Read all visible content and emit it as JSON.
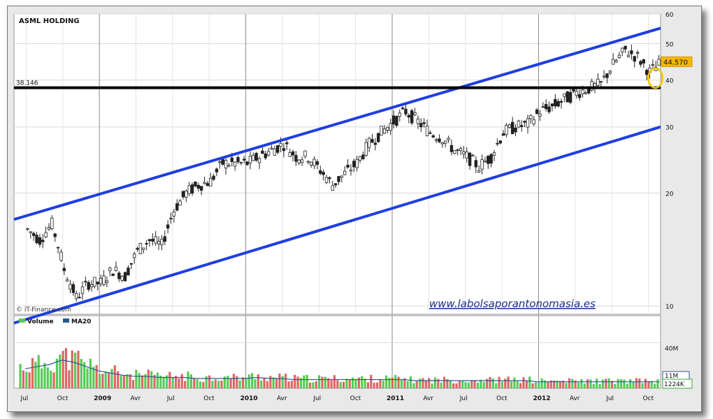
{
  "chart_data": [
    {
      "type": "candlestick",
      "title": "ASML HOLDING",
      "y_scale": "log",
      "ylim": [
        9.5,
        60
      ],
      "y_ticks": [
        10,
        20,
        30,
        40,
        50,
        60
      ],
      "x_ticks": [
        "Jul",
        "Oct",
        "2009",
        "Avr",
        "Jul",
        "Oct",
        "2010",
        "Avr",
        "Jul",
        "Oct",
        "2011",
        "Avr",
        "Jul",
        "Oct",
        "2012",
        "Avr",
        "Jul",
        "Oct"
      ],
      "last_price": "44.570",
      "horizontal_line": {
        "label": "38.146",
        "value": 38.146
      },
      "channel": {
        "upper": [
          {
            "date": "2008-06",
            "value": 17.0
          },
          {
            "date": "2012-11",
            "value": 55.0
          }
        ],
        "lower": [
          {
            "date": "2008-06",
            "value": 9.0
          },
          {
            "date": "2012-11",
            "value": 30.0
          }
        ]
      },
      "series": [
        {
          "name": "ASML HOLDING",
          "points": [
            {
              "date": "2008-07",
              "value": 16.0
            },
            {
              "date": "2008-08",
              "value": 15.0
            },
            {
              "date": "2008-09",
              "value": 16.5
            },
            {
              "date": "2008-10",
              "value": 12.5
            },
            {
              "date": "2008-11",
              "value": 10.5
            },
            {
              "date": "2008-12",
              "value": 11.5
            },
            {
              "date": "2009-01",
              "value": 11.5
            },
            {
              "date": "2009-02",
              "value": 12.5
            },
            {
              "date": "2009-03",
              "value": 12.0
            },
            {
              "date": "2009-04",
              "value": 14.0
            },
            {
              "date": "2009-05",
              "value": 15.0
            },
            {
              "date": "2009-06",
              "value": 14.5
            },
            {
              "date": "2009-07",
              "value": 18.0
            },
            {
              "date": "2009-08",
              "value": 20.0
            },
            {
              "date": "2009-09",
              "value": 21.0
            },
            {
              "date": "2009-10",
              "value": 21.5
            },
            {
              "date": "2009-11",
              "value": 24.0
            },
            {
              "date": "2009-12",
              "value": 24.0
            },
            {
              "date": "2010-01",
              "value": 24.0
            },
            {
              "date": "2010-02",
              "value": 25.0
            },
            {
              "date": "2010-03",
              "value": 26.0
            },
            {
              "date": "2010-04",
              "value": 27.0
            },
            {
              "date": "2010-05",
              "value": 25.0
            },
            {
              "date": "2010-06",
              "value": 25.0
            },
            {
              "date": "2010-07",
              "value": 23.0
            },
            {
              "date": "2010-08",
              "value": 21.0
            },
            {
              "date": "2010-09",
              "value": 22.5
            },
            {
              "date": "2010-10",
              "value": 24.0
            },
            {
              "date": "2010-11",
              "value": 27.0
            },
            {
              "date": "2010-12",
              "value": 29.0
            },
            {
              "date": "2011-01",
              "value": 31.0
            },
            {
              "date": "2011-02",
              "value": 33.0
            },
            {
              "date": "2011-03",
              "value": 31.0
            },
            {
              "date": "2011-04",
              "value": 29.0
            },
            {
              "date": "2011-05",
              "value": 28.0
            },
            {
              "date": "2011-06",
              "value": 26.0
            },
            {
              "date": "2011-07",
              "value": 25.0
            },
            {
              "date": "2011-08",
              "value": 23.5
            },
            {
              "date": "2011-09",
              "value": 25.0
            },
            {
              "date": "2011-10",
              "value": 29.0
            },
            {
              "date": "2011-11",
              "value": 30.0
            },
            {
              "date": "2011-12",
              "value": 30.5
            },
            {
              "date": "2012-01",
              "value": 33.0
            },
            {
              "date": "2012-02",
              "value": 34.0
            },
            {
              "date": "2012-03",
              "value": 35.5
            },
            {
              "date": "2012-04",
              "value": 37.0
            },
            {
              "date": "2012-05",
              "value": 38.0
            },
            {
              "date": "2012-06",
              "value": 39.0
            },
            {
              "date": "2012-07",
              "value": 44.0
            },
            {
              "date": "2012-08",
              "value": 48.0
            },
            {
              "date": "2012-09",
              "value": 46.0
            },
            {
              "date": "2012-10",
              "value": 42.0
            },
            {
              "date": "2012-11",
              "value": 44.57
            }
          ]
        }
      ]
    },
    {
      "type": "bar",
      "legend": [
        "Volume",
        "MA20"
      ],
      "y_ticks_labels": [
        "40M"
      ],
      "last_values": [
        "11M",
        "1224K"
      ],
      "series": [
        {
          "name": "Volume",
          "colors": {
            "up": "#55cc55",
            "down": "#dd6666"
          }
        },
        {
          "name": "MA20",
          "color": "#2a5a90"
        }
      ],
      "monthly_volume_M": [
        18,
        20,
        22,
        26,
        24,
        20,
        16,
        14,
        12,
        11,
        11,
        10,
        10,
        10,
        9,
        9,
        9,
        9,
        9,
        10,
        9,
        9,
        8,
        8,
        8,
        8,
        8,
        8,
        8,
        8,
        8,
        8,
        7,
        7,
        7,
        7,
        7,
        7,
        7,
        7,
        7,
        7,
        6,
        6,
        6,
        6,
        6,
        6,
        6,
        6,
        6,
        6,
        6
      ]
    }
  ],
  "watermarks": {
    "source": "© iT-Finance.com",
    "website": "www.labolsaporantonomasia.es"
  },
  "colors": {
    "channel": "#1f3fe0",
    "support_line": "#000000",
    "highlight": "#f2c200",
    "price_box": "#f5b800"
  }
}
